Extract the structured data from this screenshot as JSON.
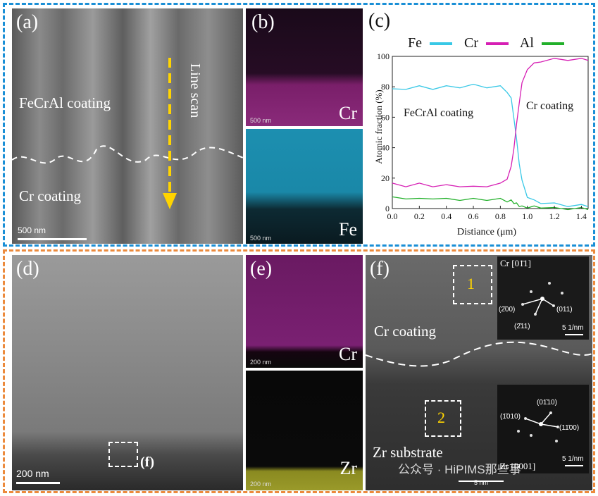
{
  "panel_a": {
    "label": "(a)",
    "coating_top": "FeCrAl coating",
    "coating_bottom": "Cr coating",
    "line_scan": "Line scan",
    "scale": "500 nm"
  },
  "panel_b": {
    "label": "(b)",
    "map1": "Cr",
    "map2": "Fe",
    "scale1": "500 nm",
    "scale2": "500 nm"
  },
  "panel_c": {
    "label": "(c)",
    "legend": [
      "Fe",
      "Cr",
      "Al"
    ],
    "ylabel": "Atomic fraction (%)",
    "xlabel": "Distiance (μm)",
    "ann_left": "FeCrAl coating",
    "ann_right": "Cr coating",
    "xticks": [
      "0.0",
      "0.2",
      "0.4",
      "0.6",
      "0.8",
      "1.0",
      "1.2",
      "1.4"
    ],
    "yticks": [
      "0",
      "20",
      "40",
      "60",
      "80",
      "100"
    ]
  },
  "panel_d": {
    "label": "(d)",
    "scale": "200 nm",
    "box_label": "(f)"
  },
  "panel_e": {
    "label": "(e)",
    "map1": "Cr",
    "map2": "Zr",
    "scale1": "200 nm",
    "scale2": "200 nm"
  },
  "panel_f": {
    "label": "(f)",
    "coating": "Cr coating",
    "substrate": "Zr substrate",
    "box1": "1",
    "box2": "2",
    "fft1_title": "Cr [01̄1]",
    "fft1_spots": [
      "(2̄00)",
      "(011)",
      "(2̄11)"
    ],
    "fft1_scale": "5 1/nm",
    "fft2_title": "Zr [0001]",
    "fft2_spots": [
      "(01̄10)",
      "(1̄010)",
      "(11̄00)"
    ],
    "fft2_scale": "5 1/nm",
    "scale": "5 nm",
    "watermark": "公众号 · HiPIMS那些事"
  },
  "colors": {
    "fe": "#38c8e6",
    "cr": "#d61fb4",
    "al": "#22b02a",
    "top_frame": "#1a8fd6",
    "bottom_frame": "#ec8a3c"
  },
  "chart_data": {
    "type": "line",
    "xlabel": "Distiance (μm)",
    "ylabel": "Atomic fraction (%)",
    "xlim": [
      0,
      1.45
    ],
    "ylim": [
      0,
      100
    ],
    "series": [
      {
        "name": "Fe",
        "x": [
          0,
          0.1,
          0.2,
          0.3,
          0.4,
          0.5,
          0.6,
          0.7,
          0.8,
          0.85,
          0.88,
          0.9,
          0.92,
          0.94,
          0.96,
          1.0,
          1.05,
          1.1,
          1.2,
          1.3,
          1.4,
          1.45
        ],
        "values": [
          78,
          79,
          80,
          79,
          80,
          80,
          81,
          80,
          80,
          77,
          72,
          60,
          45,
          30,
          18,
          8,
          5,
          4,
          3,
          2,
          2,
          2
        ]
      },
      {
        "name": "Cr",
        "x": [
          0,
          0.1,
          0.2,
          0.3,
          0.4,
          0.5,
          0.6,
          0.7,
          0.8,
          0.85,
          0.88,
          0.9,
          0.92,
          0.94,
          0.96,
          1.0,
          1.05,
          1.1,
          1.2,
          1.3,
          1.4,
          1.45
        ],
        "values": [
          16,
          15,
          16,
          15,
          15,
          15,
          14,
          15,
          16,
          20,
          27,
          40,
          55,
          70,
          82,
          92,
          95,
          97,
          98,
          98,
          98,
          98
        ]
      },
      {
        "name": "Al",
        "x": [
          0,
          0.1,
          0.2,
          0.3,
          0.4,
          0.5,
          0.6,
          0.7,
          0.8,
          0.85,
          0.88,
          0.9,
          0.92,
          0.94,
          0.96,
          1.0,
          1.05,
          1.1,
          1.2,
          1.3,
          1.4,
          1.45
        ],
        "values": [
          7,
          7,
          6,
          7,
          6,
          6,
          6,
          6,
          6,
          5,
          5,
          4,
          3,
          2,
          1,
          1,
          1,
          1,
          0,
          0,
          0,
          0
        ]
      }
    ]
  }
}
